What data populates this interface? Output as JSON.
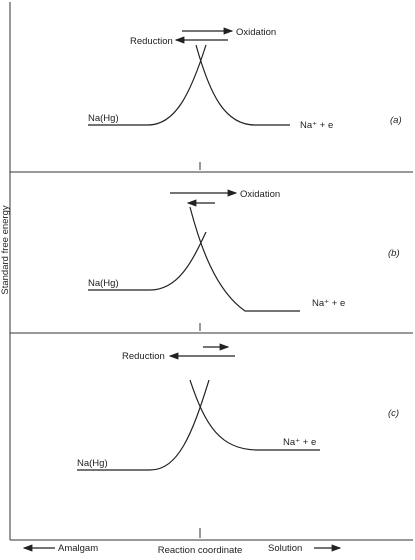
{
  "axis": {
    "y_label": "Standard free energy",
    "x_label": "Reaction coordinate",
    "left_end": "Amalgam",
    "right_end": "Solution"
  },
  "panels": [
    {
      "tag": "(a)",
      "arrow_right": "Oxidation",
      "arrow_left": "Reduction",
      "left_state": "Na(Hg)",
      "right_state": "Na⁺ + e"
    },
    {
      "tag": "(b)",
      "arrow_right": "Oxidation",
      "left_state": "Na(Hg)",
      "right_state": "Na⁺ + e"
    },
    {
      "tag": "(c)",
      "arrow_left": "Reduction",
      "left_state": "Na(Hg)",
      "right_state": "Na⁺ + e"
    }
  ]
}
